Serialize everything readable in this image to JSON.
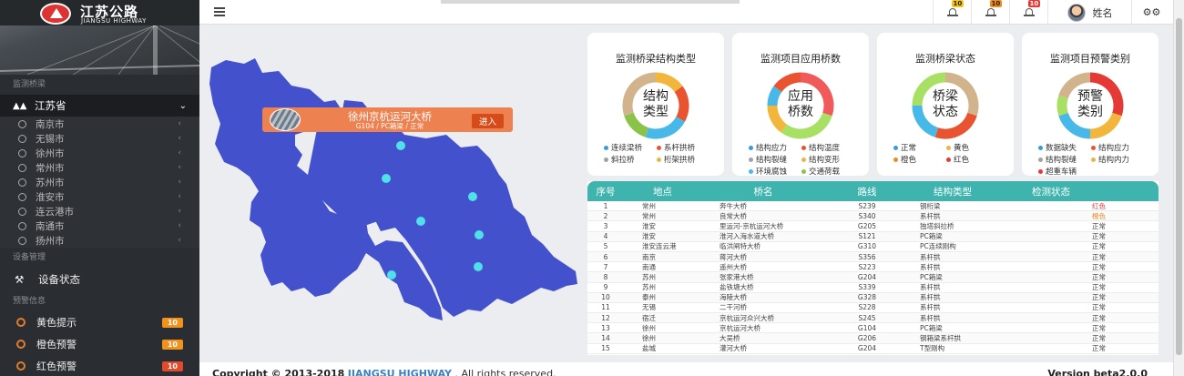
{
  "brand": {
    "name": "江苏公路",
    "name_en": "JIANGSU HIGHWAY"
  },
  "sidebar": {
    "section_bridges": "监测桥梁",
    "province": "江苏省",
    "cities": [
      "南京市",
      "无锡市",
      "徐州市",
      "常州市",
      "苏州市",
      "淮安市",
      "连云港市",
      "南通市",
      "扬州市"
    ],
    "section_device": "设备管理",
    "device_status": "设备状态",
    "section_alert": "预警信息",
    "alerts": [
      {
        "label": "黄色提示",
        "count": "10"
      },
      {
        "label": "橙色预警",
        "count": "10"
      },
      {
        "label": "红色预警",
        "count": "10"
      }
    ]
  },
  "topbar": {
    "notifications": [
      {
        "icon": "bell-icon",
        "count": "10",
        "color": "#f5c518"
      },
      {
        "icon": "bell-icon",
        "count": "10",
        "color": "#f08a1c"
      },
      {
        "icon": "bell-icon",
        "count": "10",
        "color": "#e53935"
      }
    ],
    "user_name": "姓名"
  },
  "map": {
    "popup_title": "徐州京杭运河大桥",
    "popup_sub": "G104 / PC箱梁 / 正常",
    "popup_button": "进入"
  },
  "cards": [
    {
      "title": "监测桥梁结构类型",
      "center": [
        "结构",
        "类型"
      ],
      "slices": [
        {
          "label": "连续梁桥",
          "color": "#3b9bd9",
          "value": 25
        },
        {
          "label": "系杆拱桥",
          "color": "#e8542f",
          "value": 25
        },
        {
          "label": "斜拉桥",
          "color": "#a1a1a1",
          "value": 25
        },
        {
          "label": "桁架拱桥",
          "color": "#e8b64a",
          "value": 25
        }
      ],
      "ring": [
        {
          "color": "#f3b63c",
          "value": 15
        },
        {
          "color": "#e8542f",
          "value": 18
        },
        {
          "color": "#48b8e8",
          "value": 22
        },
        {
          "color": "#8bc34a",
          "value": 15
        },
        {
          "color": "#d2b48c",
          "value": 30
        }
      ]
    },
    {
      "title": "监测项目应用桥数",
      "center": [
        "应用",
        "桥数"
      ],
      "slices": [
        {
          "label": "结构应力",
          "color": "#3b9bd9",
          "value": 20
        },
        {
          "label": "结构温度",
          "color": "#e8542f",
          "value": 20
        },
        {
          "label": "结构裂缝",
          "color": "#a1a1a1",
          "value": 20
        },
        {
          "label": "结构变形",
          "color": "#e8b64a",
          "value": 20
        },
        {
          "label": "环境腐蚀",
          "color": "#48b8e8",
          "value": 10
        },
        {
          "label": "交通荷载",
          "color": "#8bc34a",
          "value": 10
        }
      ],
      "ring": [
        {
          "color": "#f15a5a",
          "value": 30
        },
        {
          "color": "#a8e063",
          "value": 30
        },
        {
          "color": "#f3b63c",
          "value": 15
        },
        {
          "color": "#48b8e8",
          "value": 10
        },
        {
          "color": "#e8542f",
          "value": 15
        }
      ]
    },
    {
      "title": "监测桥梁状态",
      "center": [
        "桥梁",
        "状态"
      ],
      "slices": [
        {
          "label": "正常",
          "color": "#3b9bd9",
          "value": 25
        },
        {
          "label": "黄色",
          "color": "#e8b64a",
          "value": 25
        },
        {
          "label": "橙色",
          "color": "#f08a1c",
          "value": 25
        },
        {
          "label": "红色",
          "color": "#e53935",
          "value": 25
        }
      ],
      "ring": [
        {
          "color": "#d2b48c",
          "value": 30
        },
        {
          "color": "#e8542f",
          "value": 25
        },
        {
          "color": "#48b8e8",
          "value": 20
        },
        {
          "color": "#a8e063",
          "value": 25
        }
      ]
    },
    {
      "title": "监测项目预警类别",
      "center": [
        "预警",
        "类别"
      ],
      "slices": [
        {
          "label": "数据缺失",
          "color": "#3b9bd9",
          "value": 20
        },
        {
          "label": "结构应力",
          "color": "#e8542f",
          "value": 20
        },
        {
          "label": "结构裂缝",
          "color": "#a1a1a1",
          "value": 20
        },
        {
          "label": "结构内力",
          "color": "#e8b64a",
          "value": 20
        },
        {
          "label": "超重车辆",
          "color": "#e53935",
          "value": 20
        }
      ],
      "ring": [
        {
          "color": "#e53935",
          "value": 30
        },
        {
          "color": "#f3b63c",
          "value": 20
        },
        {
          "color": "#48b8e8",
          "value": 20
        },
        {
          "color": "#a8e063",
          "value": 10
        },
        {
          "color": "#d2b48c",
          "value": 20
        }
      ]
    }
  ],
  "table": {
    "headers": [
      "序号",
      "地点",
      "桥名",
      "路线",
      "结构类型",
      "检测状态"
    ],
    "rows": [
      [
        "1",
        "常州",
        "奔牛大桥",
        "S239",
        "钢桁梁",
        "红色"
      ],
      [
        "2",
        "常州",
        "良常大桥",
        "S340",
        "系杆拱",
        "橙色"
      ],
      [
        "3",
        "淮安",
        "里运河-京杭运河大桥",
        "G205",
        "独塔斜拉桥",
        "正常"
      ],
      [
        "4",
        "淮安",
        "淮河入海水道大桥",
        "S121",
        "PC箱梁",
        "正常"
      ],
      [
        "5",
        "淮安连云港",
        "临洪闸特大桥",
        "G310",
        "PC连续刚构",
        "正常"
      ],
      [
        "6",
        "南京",
        "蒋河大桥",
        "S356",
        "系杆拱",
        "正常"
      ],
      [
        "7",
        "南通",
        "遥州大桥",
        "S223",
        "系杆拱",
        "正常"
      ],
      [
        "8",
        "苏州",
        "张家港大桥",
        "G204",
        "PC箱梁",
        "正常"
      ],
      [
        "9",
        "苏州",
        "盐铁塘大桥",
        "S339",
        "系杆拱",
        "正常"
      ],
      [
        "10",
        "泰州",
        "海陵大桥",
        "G328",
        "系杆拱",
        "正常"
      ],
      [
        "11",
        "无锡",
        "二干河桥",
        "S228",
        "系杆拱",
        "正常"
      ],
      [
        "12",
        "宿迁",
        "京杭运河众兴大桥",
        "S245",
        "系杆拱",
        "正常"
      ],
      [
        "13",
        "徐州",
        "京杭运河大桥",
        "G104",
        "PC箱梁",
        "正常"
      ],
      [
        "14",
        "徐州",
        "大吴桥",
        "G206",
        "钢箱梁系杆拱",
        "正常"
      ],
      [
        "15",
        "盐城",
        "灌河大桥",
        "G204",
        "T型刚构",
        "正常"
      ]
    ],
    "status_colors": {
      "红色": "#e03b3b",
      "橙色": "#e88b2a"
    }
  },
  "footer": {
    "copyright": "Copyright © 2013-2018",
    "brand": "JIANGSU HIGHWAY",
    "rights": ". All rights reserved.",
    "version": "Version beta2.0.0"
  }
}
